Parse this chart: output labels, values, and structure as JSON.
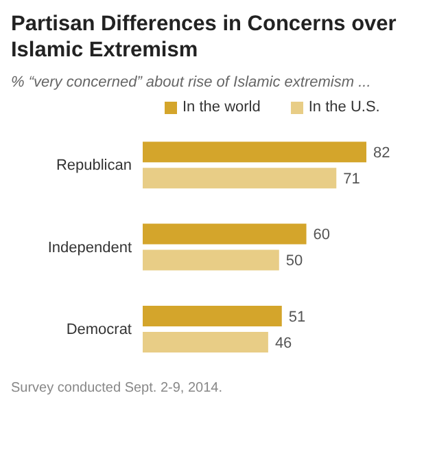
{
  "chart_data": {
    "type": "bar",
    "orientation": "horizontal",
    "title": "Partisan Differences in Concerns over Islamic Extremism",
    "subtitle": "% “very concerned” about rise of Islamic extremism ...",
    "categories": [
      "Republican",
      "Independent",
      "Democrat"
    ],
    "series": [
      {
        "name": "In the world",
        "color": "#d4a52b",
        "values": [
          82,
          60,
          51
        ]
      },
      {
        "name": "In the U.S.",
        "color": "#e8cd86",
        "values": [
          71,
          50,
          46
        ]
      }
    ],
    "data_labels": true,
    "legend": "top",
    "annotations": [
      "Survey conducted Sept. 2-9, 2014."
    ]
  }
}
